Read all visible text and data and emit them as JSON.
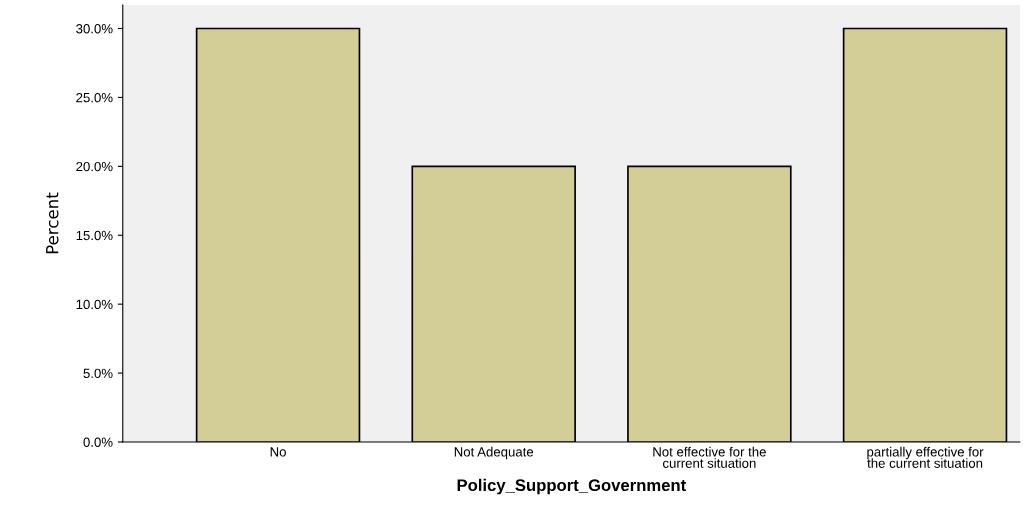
{
  "chart_data": {
    "type": "bar",
    "xlabel": "Policy_Support_Government",
    "ylabel": "Percent",
    "categories": [
      "No",
      "Not Adequate",
      "Not effective for the\ncurrent situation",
      "partially effective for\nthe current situation"
    ],
    "values": [
      30,
      20,
      20,
      30
    ],
    "color": "#d3ce97",
    "ylim": [
      0,
      31.7
    ],
    "yticks": [
      {
        "value": 0,
        "label": "0.0%"
      },
      {
        "value": 5,
        "label": "5.0%"
      },
      {
        "value": 10,
        "label": "10.0%"
      },
      {
        "value": 15,
        "label": "15.0%"
      },
      {
        "value": 20,
        "label": "20.0%"
      },
      {
        "value": 25,
        "label": "25.0%"
      },
      {
        "value": 30,
        "label": "30.0%"
      }
    ],
    "grid": false,
    "legend": false
  }
}
